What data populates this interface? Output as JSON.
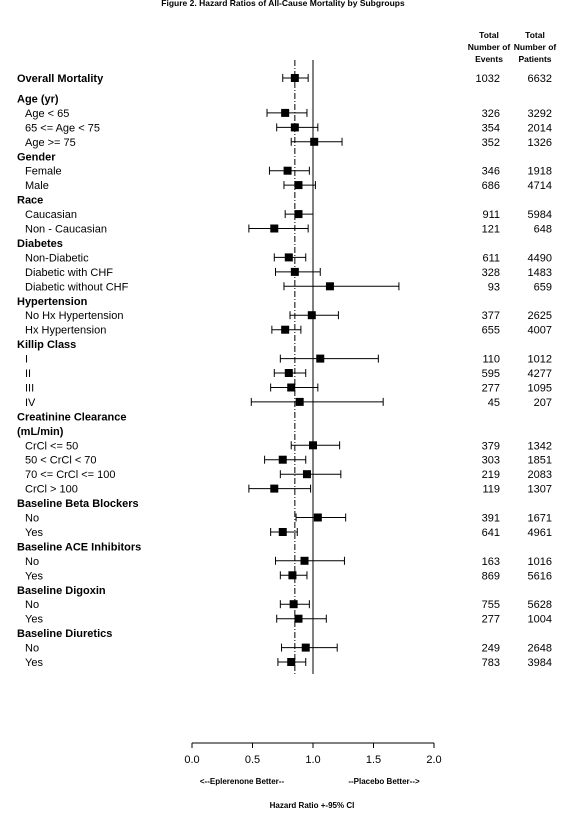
{
  "chart_data": {
    "type": "forest",
    "title": "Figure 2. Hazard Ratios of All-Cause Mortality by Subgroups",
    "columns": {
      "events": [
        "Total",
        "Number of",
        "Events"
      ],
      "patients": [
        "Total",
        "Number of",
        "Patients"
      ]
    },
    "xlabel": "Hazard Ratio +-95% CI",
    "left_annotation": "<--Eplerenone Better--",
    "right_annotation": "--Placebo Better-->",
    "xlim": [
      0,
      2
    ],
    "xticks": [
      "0.0",
      "0.5",
      "1.0",
      "1.5",
      "2.0"
    ],
    "reference_line": 1.0,
    "overall_line": 0.85,
    "rows": [
      {
        "label": "Overall Mortality",
        "kind": "group",
        "hr": 0.85,
        "lo": 0.75,
        "hi": 0.96,
        "events": "1032",
        "patients": "6632"
      },
      {
        "label": "Age (yr)",
        "kind": "group"
      },
      {
        "label": "Age < 65",
        "kind": "sub",
        "hr": 0.77,
        "lo": 0.62,
        "hi": 0.95,
        "events": "326",
        "patients": "3292"
      },
      {
        "label": "65 <= Age < 75",
        "kind": "sub",
        "hr": 0.85,
        "lo": 0.7,
        "hi": 1.04,
        "events": "354",
        "patients": "2014"
      },
      {
        "label": "Age >= 75",
        "kind": "sub",
        "hr": 1.01,
        "lo": 0.82,
        "hi": 1.24,
        "events": "352",
        "patients": "1326"
      },
      {
        "label": "Gender",
        "kind": "group"
      },
      {
        "label": "Female",
        "kind": "sub",
        "hr": 0.79,
        "lo": 0.64,
        "hi": 0.97,
        "events": "346",
        "patients": "1918"
      },
      {
        "label": "Male",
        "kind": "sub",
        "hr": 0.88,
        "lo": 0.76,
        "hi": 1.02,
        "events": "686",
        "patients": "4714"
      },
      {
        "label": "Race",
        "kind": "group"
      },
      {
        "label": "Caucasian",
        "kind": "sub",
        "hr": 0.88,
        "lo": 0.77,
        "hi": 1.0,
        "events": "911",
        "patients": "5984"
      },
      {
        "label": "Non - Caucasian",
        "kind": "sub",
        "hr": 0.68,
        "lo": 0.47,
        "hi": 0.96,
        "events": "121",
        "patients": "648"
      },
      {
        "label": "Diabetes",
        "kind": "group"
      },
      {
        "label": "Non-Diabetic",
        "kind": "sub",
        "hr": 0.8,
        "lo": 0.68,
        "hi": 0.94,
        "events": "611",
        "patients": "4490"
      },
      {
        "label": "Diabetic with CHF",
        "kind": "sub",
        "hr": 0.85,
        "lo": 0.69,
        "hi": 1.06,
        "events": "328",
        "patients": "1483"
      },
      {
        "label": "Diabetic without CHF",
        "kind": "sub",
        "hr": 1.14,
        "lo": 0.76,
        "hi": 1.71,
        "events": "93",
        "patients": "659"
      },
      {
        "label": "Hypertension",
        "kind": "group"
      },
      {
        "label": "No Hx Hypertension",
        "kind": "sub",
        "hr": 0.99,
        "lo": 0.81,
        "hi": 1.21,
        "events": "377",
        "patients": "2625"
      },
      {
        "label": "Hx Hypertension",
        "kind": "sub",
        "hr": 0.77,
        "lo": 0.66,
        "hi": 0.9,
        "events": "655",
        "patients": "4007"
      },
      {
        "label": "Killip Class",
        "kind": "group"
      },
      {
        "label": "I",
        "kind": "sub",
        "hr": 1.06,
        "lo": 0.73,
        "hi": 1.54,
        "events": "110",
        "patients": "1012"
      },
      {
        "label": "II",
        "kind": "sub",
        "hr": 0.8,
        "lo": 0.68,
        "hi": 0.94,
        "events": "595",
        "patients": "4277"
      },
      {
        "label": "III",
        "kind": "sub",
        "hr": 0.82,
        "lo": 0.65,
        "hi": 1.04,
        "events": "277",
        "patients": "1095"
      },
      {
        "label": "IV",
        "kind": "sub",
        "hr": 0.89,
        "lo": 0.49,
        "hi": 1.58,
        "events": "45",
        "patients": "207"
      },
      {
        "label": "Creatinine Clearance",
        "kind": "group"
      },
      {
        "label": "(mL/min)",
        "kind": "group"
      },
      {
        "label": "CrCl <= 50",
        "kind": "sub",
        "hr": 1.0,
        "lo": 0.82,
        "hi": 1.22,
        "events": "379",
        "patients": "1342"
      },
      {
        "label": "50 < CrCl < 70",
        "kind": "sub",
        "hr": 0.75,
        "lo": 0.6,
        "hi": 0.94,
        "events": "303",
        "patients": "1851"
      },
      {
        "label": "70 <= CrCl <= 100",
        "kind": "sub",
        "hr": 0.95,
        "lo": 0.73,
        "hi": 1.23,
        "events": "219",
        "patients": "2083"
      },
      {
        "label": "CrCl > 100",
        "kind": "sub",
        "hr": 0.68,
        "lo": 0.47,
        "hi": 0.98,
        "events": "119",
        "patients": "1307"
      },
      {
        "label": "Baseline Beta Blockers",
        "kind": "group"
      },
      {
        "label": "No",
        "kind": "sub",
        "hr": 1.04,
        "lo": 0.86,
        "hi": 1.27,
        "events": "391",
        "patients": "1671"
      },
      {
        "label": "Yes",
        "kind": "sub",
        "hr": 0.75,
        "lo": 0.65,
        "hi": 0.87,
        "events": "641",
        "patients": "4961"
      },
      {
        "label": "Baseline ACE Inhibitors",
        "kind": "group"
      },
      {
        "label": "No",
        "kind": "sub",
        "hr": 0.93,
        "lo": 0.69,
        "hi": 1.26,
        "events": "163",
        "patients": "1016"
      },
      {
        "label": "Yes",
        "kind": "sub",
        "hr": 0.83,
        "lo": 0.73,
        "hi": 0.95,
        "events": "869",
        "patients": "5616"
      },
      {
        "label": "Baseline Digoxin",
        "kind": "group"
      },
      {
        "label": "No",
        "kind": "sub",
        "hr": 0.84,
        "lo": 0.73,
        "hi": 0.97,
        "events": "755",
        "patients": "5628"
      },
      {
        "label": "Yes",
        "kind": "sub",
        "hr": 0.88,
        "lo": 0.7,
        "hi": 1.11,
        "events": "277",
        "patients": "1004"
      },
      {
        "label": "Baseline Diuretics",
        "kind": "group"
      },
      {
        "label": "No",
        "kind": "sub",
        "hr": 0.94,
        "lo": 0.74,
        "hi": 1.2,
        "events": "249",
        "patients": "2648"
      },
      {
        "label": "Yes",
        "kind": "sub",
        "hr": 0.82,
        "lo": 0.71,
        "hi": 0.94,
        "events": "783",
        "patients": "3984"
      }
    ]
  }
}
